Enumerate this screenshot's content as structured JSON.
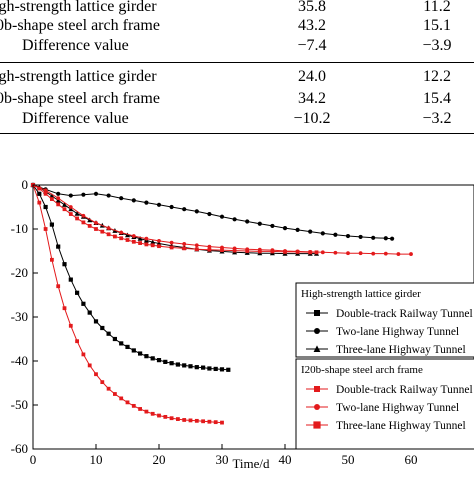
{
  "table": {
    "rows": [
      {
        "label": "igh-strength lattice girder",
        "v1": "35.8",
        "v2": "11.2"
      },
      {
        "label": "0b-shape steel arch frame",
        "v1": "43.2",
        "v2": "15.1"
      },
      {
        "label": "Difference value",
        "v1": "−7.4",
        "v2": "−3.9"
      },
      {
        "label": "igh-strength lattice girder",
        "v1": "24.0",
        "v2": "12.2"
      },
      {
        "label": "0b-shape steel arch frame",
        "v1": "34.2",
        "v2": "15.4"
      },
      {
        "label": "Difference value",
        "v1": "−10.2",
        "v2": "−3.2"
      }
    ]
  },
  "chart_data": {
    "type": "line",
    "xlabel": "Time/d",
    "ylabel": "",
    "xlim": [
      0,
      70
    ],
    "ylim": [
      -60,
      0
    ],
    "xticks": [
      0,
      10,
      20,
      30,
      40,
      50,
      60
    ],
    "yticks": [
      0,
      -10,
      -20,
      -30,
      -40,
      -50,
      -60
    ],
    "grid": false,
    "legend_groups": [
      {
        "title": "High-strength lattice girder",
        "entries": [
          {
            "label": "Double-track Railway Tunnel",
            "marker": "square",
            "color": "#000000"
          },
          {
            "label": "Two-lane Highway Tunnel",
            "marker": "circle",
            "color": "#000000"
          },
          {
            "label": "Three-lane Highway Tunnel",
            "marker": "triangle",
            "color": "#000000"
          }
        ]
      },
      {
        "title": "I20b-shape steel arch frame",
        "entries": [
          {
            "label": "Double-track Railway Tunnel",
            "marker": "square",
            "color": "#e31a1c"
          },
          {
            "label": "Two-lane Highway Tunnel",
            "marker": "circle",
            "color": "#e31a1c"
          },
          {
            "label": "Three-lane Highway Tunnel",
            "marker": "square",
            "color": "#e31a1c"
          }
        ]
      }
    ],
    "series": [
      {
        "group": 0,
        "marker": "square",
        "color": "#000000",
        "x": [
          0,
          1,
          2,
          3,
          4,
          5,
          6,
          7,
          8,
          9,
          10,
          11,
          12,
          13,
          14,
          15,
          16,
          17,
          18,
          19,
          20,
          21,
          22,
          23,
          24,
          25,
          26,
          27,
          28,
          29,
          30,
          31
        ],
        "y": [
          0,
          -2,
          -5,
          -9,
          -14,
          -18,
          -21.5,
          -24.5,
          -27,
          -29,
          -31,
          -32.5,
          -33.8,
          -35,
          -36,
          -36.8,
          -37.6,
          -38.3,
          -38.9,
          -39.4,
          -39.8,
          -40.2,
          -40.5,
          -40.8,
          -41,
          -41.2,
          -41.4,
          -41.5,
          -41.7,
          -41.8,
          -41.9,
          -42
        ]
      },
      {
        "group": 0,
        "marker": "circle",
        "color": "#000000",
        "x": [
          0,
          2,
          4,
          6,
          8,
          10,
          12,
          14,
          16,
          18,
          20,
          22,
          24,
          26,
          28,
          30,
          32,
          34,
          36,
          38,
          40,
          42,
          44,
          46,
          48,
          50,
          52,
          54,
          56,
          57
        ],
        "y": [
          0,
          -1,
          -2,
          -2.4,
          -2.2,
          -2,
          -2.4,
          -3,
          -3.5,
          -4,
          -4.5,
          -5,
          -5.5,
          -6,
          -6.6,
          -7.2,
          -7.8,
          -8.3,
          -8.8,
          -9.3,
          -9.8,
          -10.2,
          -10.6,
          -11,
          -11.3,
          -11.6,
          -11.8,
          -12,
          -12.1,
          -12.2
        ]
      },
      {
        "group": 0,
        "marker": "triangle",
        "color": "#000000",
        "x": [
          0,
          1,
          2,
          3,
          4,
          5,
          6,
          7,
          8,
          9,
          10,
          11,
          12,
          13,
          14,
          15,
          16,
          17,
          18,
          19,
          20,
          22,
          24,
          26,
          28,
          30,
          32,
          34,
          36,
          38,
          40,
          42,
          44,
          45
        ],
        "y": [
          0,
          -0.5,
          -1.5,
          -2.5,
          -3.5,
          -4.5,
          -5.5,
          -6.5,
          -7.2,
          -8,
          -8.6,
          -9.2,
          -9.8,
          -10.4,
          -10.9,
          -11.4,
          -11.8,
          -12.2,
          -12.6,
          -13,
          -13.3,
          -13.8,
          -14.2,
          -14.6,
          -14.9,
          -15.1,
          -15.3,
          -15.4,
          -15.5,
          -15.5,
          -15.6,
          -15.6,
          -15.6,
          -15.6
        ]
      },
      {
        "group": 1,
        "marker": "square",
        "color": "#e31a1c",
        "x": [
          0,
          1,
          2,
          3,
          4,
          5,
          6,
          7,
          8,
          9,
          10,
          11,
          12,
          13,
          14,
          15,
          16,
          17,
          18,
          19,
          20,
          21,
          22,
          23,
          24,
          25,
          26,
          27,
          28,
          29,
          30
        ],
        "y": [
          0,
          -4,
          -10,
          -17,
          -23,
          -28,
          -32,
          -35.5,
          -38.5,
          -41,
          -43,
          -44.8,
          -46.3,
          -47.5,
          -48.5,
          -49.4,
          -50.2,
          -50.9,
          -51.5,
          -52,
          -52.4,
          -52.7,
          -53,
          -53.2,
          -53.4,
          -53.5,
          -53.6,
          -53.7,
          -53.8,
          -53.9,
          -54
        ]
      },
      {
        "group": 1,
        "marker": "circle",
        "color": "#e31a1c",
        "x": [
          0,
          2,
          4,
          6,
          8,
          10,
          12,
          14,
          16,
          18,
          20,
          22,
          24,
          26,
          28,
          30,
          32,
          34,
          36,
          38,
          40,
          42,
          44,
          46,
          48,
          50,
          52,
          54,
          56,
          58,
          60
        ],
        "y": [
          0,
          -1.2,
          -3,
          -5,
          -7,
          -8.6,
          -9.8,
          -10.8,
          -11.6,
          -12.2,
          -12.7,
          -13.1,
          -13.4,
          -13.7,
          -14,
          -14.2,
          -14.4,
          -14.6,
          -14.7,
          -14.8,
          -15,
          -15.1,
          -15.2,
          -15.3,
          -15.4,
          -15.5,
          -15.5,
          -15.6,
          -15.6,
          -15.7,
          -15.7
        ]
      },
      {
        "group": 1,
        "marker": "square",
        "color": "#e31a1c",
        "x": [
          0,
          1,
          2,
          3,
          4,
          5,
          6,
          7,
          8,
          9,
          10,
          11,
          12,
          13,
          14,
          15,
          16,
          17,
          18,
          19,
          20,
          22,
          24,
          26,
          28,
          30,
          32,
          34,
          36,
          38,
          40,
          42,
          44,
          45
        ],
        "y": [
          0,
          -0.8,
          -2,
          -3.2,
          -4.4,
          -5.5,
          -6.6,
          -7.6,
          -8.5,
          -9.3,
          -10,
          -10.6,
          -11.2,
          -11.7,
          -12.1,
          -12.5,
          -12.9,
          -13.2,
          -13.5,
          -13.7,
          -13.9,
          -14.2,
          -14.4,
          -14.6,
          -14.7,
          -14.8,
          -14.9,
          -15,
          -15.1,
          -15.1,
          -15.2,
          -15.2,
          -15.3,
          -15.3
        ]
      }
    ]
  }
}
